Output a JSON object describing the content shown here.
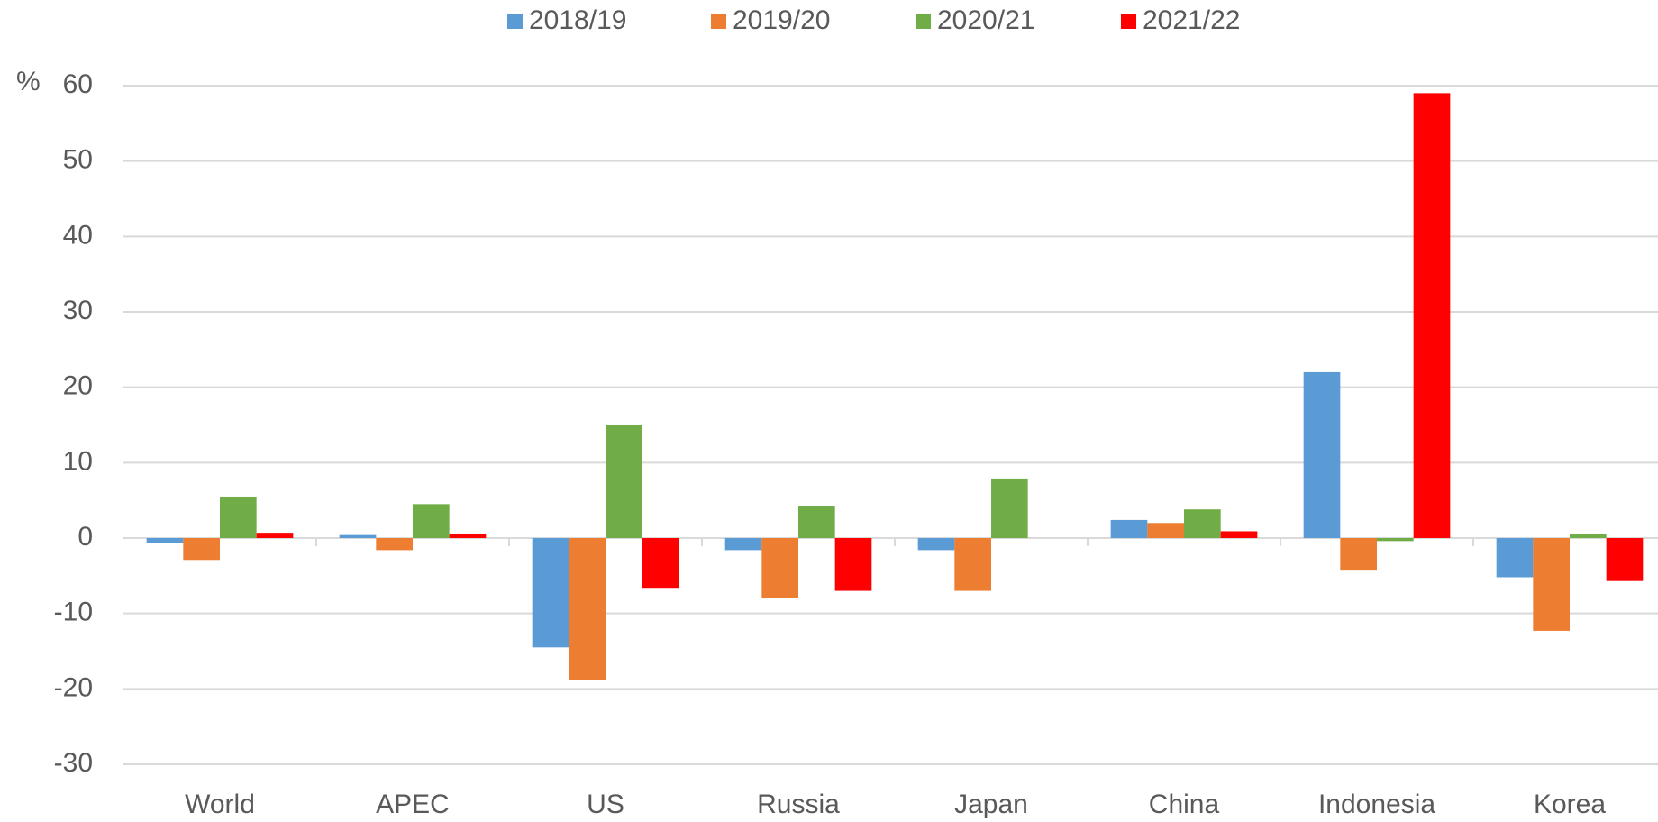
{
  "chart_data": {
    "type": "bar",
    "ylabel": "%",
    "categories": [
      "World",
      "APEC",
      "US",
      "Russia",
      "Japan",
      "China",
      "Indonesia",
      "Korea"
    ],
    "series": [
      {
        "name": "2018/19",
        "color": "#5b9bd5",
        "values": [
          -0.7,
          0.4,
          -14.5,
          -1.6,
          -1.6,
          2.4,
          22,
          -5.2
        ]
      },
      {
        "name": "2019/20",
        "color": "#ed7d31",
        "values": [
          -2.9,
          -1.6,
          -18.8,
          -8,
          -7,
          2,
          -4.2,
          -12.3
        ]
      },
      {
        "name": "2020/21",
        "color": "#70ad47",
        "values": [
          5.5,
          4.5,
          15,
          4.3,
          7.9,
          3.8,
          -0.4,
          0.6
        ]
      },
      {
        "name": "2021/22",
        "color": "#ff0000",
        "values": [
          0.7,
          0.6,
          -6.6,
          -7,
          null,
          0.9,
          59,
          -5.7
        ]
      }
    ],
    "ylim": [
      -30,
      60
    ],
    "yticks": [
      -30,
      -20,
      -10,
      0,
      10,
      20,
      30,
      40,
      50,
      60
    ],
    "grid": true,
    "legend": "top"
  }
}
